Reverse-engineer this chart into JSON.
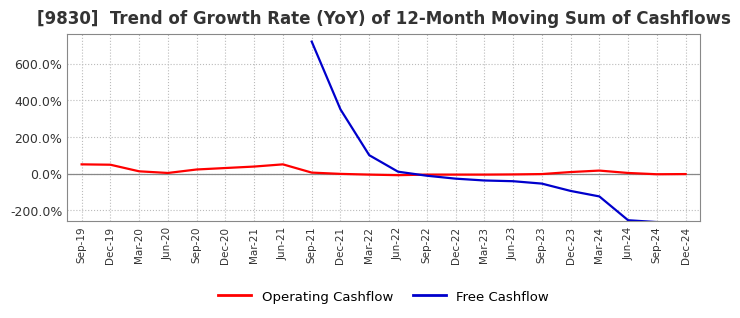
{
  "title": "[9830]  Trend of Growth Rate (YoY) of 12-Month Moving Sum of Cashflows",
  "title_fontsize": 12,
  "background_color": "#ffffff",
  "grid_color": "#aaaaaa",
  "x_labels": [
    "Sep-19",
    "Dec-19",
    "Mar-20",
    "Jun-20",
    "Sep-20",
    "Dec-20",
    "Mar-21",
    "Jun-21",
    "Sep-21",
    "Dec-21",
    "Mar-22",
    "Jun-22",
    "Sep-22",
    "Dec-22",
    "Mar-23",
    "Jun-23",
    "Sep-23",
    "Dec-23",
    "Mar-24",
    "Jun-24",
    "Sep-24",
    "Dec-24"
  ],
  "operating_cashflow": [
    0.5,
    0.48,
    0.12,
    0.03,
    0.22,
    0.3,
    0.38,
    0.5,
    0.05,
    -0.02,
    -0.06,
    -0.09,
    -0.06,
    -0.06,
    -0.06,
    -0.05,
    -0.03,
    0.08,
    0.16,
    0.03,
    -0.04,
    -0.03
  ],
  "free_cashflow": [
    null,
    null,
    null,
    null,
    null,
    null,
    null,
    null,
    7.2,
    3.5,
    1.0,
    0.1,
    -0.12,
    -0.28,
    -0.38,
    -0.42,
    -0.55,
    -0.95,
    -1.25,
    -2.55,
    -2.65,
    null
  ],
  "ylim": [
    -2.6,
    7.6
  ],
  "yticks": [
    -2.0,
    0.0,
    2.0,
    4.0,
    6.0
  ],
  "ytick_labels": [
    "-200.0%",
    "0.0%",
    "200.0%",
    "400.0%",
    "600.0%"
  ],
  "operating_color": "#ff0000",
  "free_color": "#0000cc",
  "legend_labels": [
    "Operating Cashflow",
    "Free Cashflow"
  ],
  "line_width": 1.6
}
